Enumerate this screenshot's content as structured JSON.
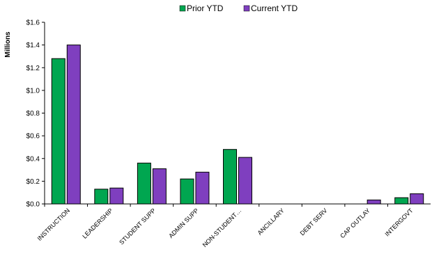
{
  "chart_data": {
    "type": "bar",
    "ylabel": "Millions",
    "ylim": [
      0,
      1.6
    ],
    "ytick_step": 0.2,
    "ytick_labels": [
      "$0.0",
      "$0.2",
      "$0.4",
      "$0.6",
      "$0.8",
      "$1.0",
      "$1.2",
      "$1.4",
      "$1.6"
    ],
    "grid": false,
    "legend_position": "top-center",
    "categories": [
      "INSTRUCTION",
      "LEADERSHIP",
      "STUDENT SUPP",
      "ADMIN SUPP",
      "NON-STUDENT…",
      "ANCILLARY",
      "DEBT SERV",
      "CAP OUTLAY",
      "INTERGOVT"
    ],
    "series": [
      {
        "name": "Prior YTD",
        "color": "#00a650",
        "values": [
          1.28,
          0.13,
          0.36,
          0.22,
          0.48,
          0,
          0,
          0,
          0.055
        ]
      },
      {
        "name": "Current YTD",
        "color": "#7f3fbf",
        "values": [
          1.4,
          0.14,
          0.31,
          0.28,
          0.41,
          0,
          0,
          0.035,
          0.09
        ]
      }
    ]
  }
}
